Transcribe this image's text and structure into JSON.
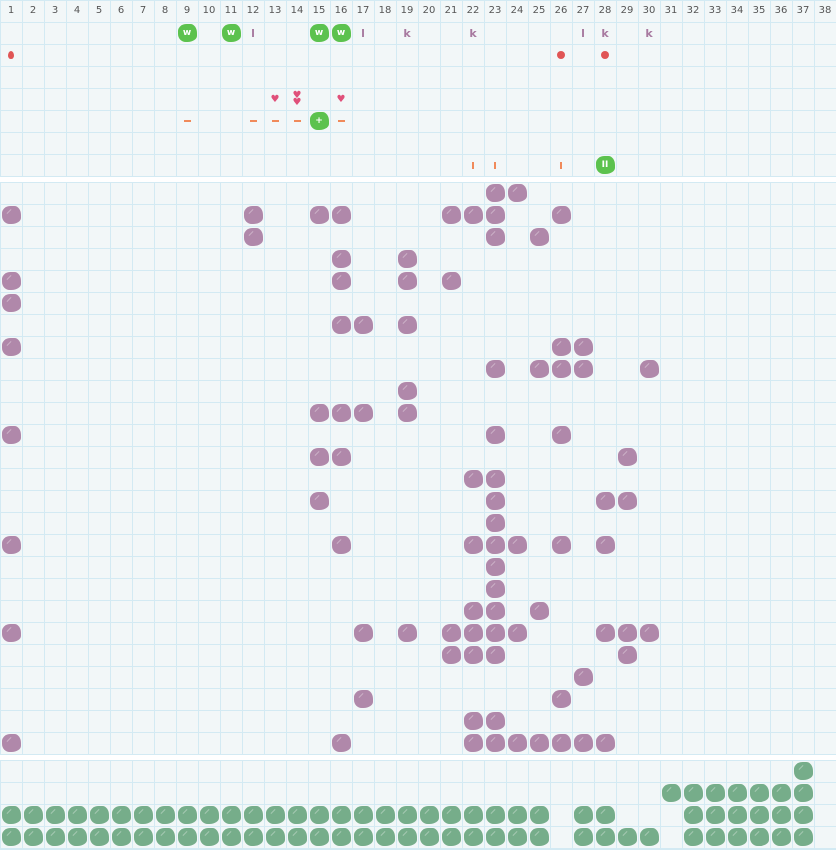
{
  "columns": [
    "1",
    "2",
    "3",
    "4",
    "5",
    "6",
    "7",
    "8",
    "9",
    "10",
    "11",
    "12",
    "13",
    "14",
    "15",
    "16",
    "17",
    "18",
    "19",
    "20",
    "21",
    "22",
    "23",
    "24",
    "25",
    "26",
    "27",
    "28",
    "29",
    "30",
    "31",
    "32",
    "33",
    "34",
    "35",
    "36",
    "37",
    "38"
  ],
  "colors": {
    "purple_block": "#b088aa",
    "green_block": "#5cc24e",
    "dark_green_block": "#76ad8a",
    "red": "#e05555",
    "heart": "#e0507a",
    "orange": "#f08a5a",
    "grid": "#d3eaf3"
  },
  "top_items": [
    {
      "row": 0,
      "col": 9,
      "type": "green",
      "label": "w"
    },
    {
      "row": 0,
      "col": 11,
      "type": "green",
      "label": "w"
    },
    {
      "row": 0,
      "col": 12,
      "type": "letter",
      "label": "l"
    },
    {
      "row": 0,
      "col": 15,
      "type": "green",
      "label": "w"
    },
    {
      "row": 0,
      "col": 16,
      "type": "green",
      "label": "w"
    },
    {
      "row": 0,
      "col": 17,
      "type": "letter",
      "label": "l"
    },
    {
      "row": 0,
      "col": 19,
      "type": "letter",
      "label": "k"
    },
    {
      "row": 0,
      "col": 22,
      "type": "letter",
      "label": "k"
    },
    {
      "row": 0,
      "col": 27,
      "type": "letter",
      "label": "l"
    },
    {
      "row": 0,
      "col": 28,
      "type": "letter",
      "label": "k"
    },
    {
      "row": 0,
      "col": 30,
      "type": "letter",
      "label": "k"
    },
    {
      "row": 1,
      "col": 1,
      "type": "drop"
    },
    {
      "row": 1,
      "col": 26,
      "type": "dot"
    },
    {
      "row": 1,
      "col": 28,
      "type": "dot"
    },
    {
      "row": 3,
      "col": 13,
      "type": "heart",
      "label": "♥"
    },
    {
      "row": 3,
      "col": 14,
      "type": "heart",
      "label": "♥♥"
    },
    {
      "row": 3,
      "col": 16,
      "type": "heart",
      "label": "♥"
    },
    {
      "row": 4,
      "col": 9,
      "type": "dash"
    },
    {
      "row": 4,
      "col": 12,
      "type": "dash"
    },
    {
      "row": 4,
      "col": 13,
      "type": "dash"
    },
    {
      "row": 4,
      "col": 14,
      "type": "dash"
    },
    {
      "row": 4,
      "col": 15,
      "type": "green",
      "label": "+"
    },
    {
      "row": 4,
      "col": 16,
      "type": "dash"
    },
    {
      "row": 6,
      "col": 22,
      "type": "bar"
    },
    {
      "row": 6,
      "col": 23,
      "type": "bar"
    },
    {
      "row": 6,
      "col": 26,
      "type": "bar"
    },
    {
      "row": 6,
      "col": 28,
      "type": "green",
      "label": "II"
    }
  ],
  "middle_rows": [
    [
      23,
      24
    ],
    [
      1,
      12,
      15,
      16,
      21,
      22,
      23,
      26
    ],
    [
      12,
      23,
      25
    ],
    [
      16,
      19
    ],
    [
      1,
      16,
      19,
      21
    ],
    [
      1
    ],
    [
      16,
      17,
      19
    ],
    [
      1,
      26,
      27
    ],
    [
      23,
      25,
      26,
      27,
      30
    ],
    [
      19
    ],
    [
      15,
      16,
      17,
      19
    ],
    [
      1,
      23,
      26
    ],
    [
      15,
      16,
      29
    ],
    [
      22,
      23
    ],
    [
      15,
      23,
      28,
      29
    ],
    [
      23
    ],
    [
      1,
      16,
      22,
      23,
      24,
      26,
      28
    ],
    [
      23
    ],
    [
      23
    ],
    [
      22,
      23,
      25
    ],
    [
      1,
      17,
      19,
      21,
      22,
      23,
      24,
      28,
      29,
      30
    ],
    [
      21,
      22,
      23,
      29
    ],
    [
      27
    ],
    [
      17,
      26
    ],
    [
      22,
      23
    ],
    [
      1,
      16,
      22,
      23,
      24,
      25,
      26,
      27,
      28
    ]
  ],
  "bottom_rows": [
    [
      37
    ],
    [
      31,
      32,
      33,
      34,
      35,
      36,
      37
    ],
    [
      1,
      2,
      3,
      4,
      5,
      6,
      7,
      8,
      9,
      10,
      11,
      12,
      13,
      14,
      15,
      16,
      17,
      18,
      19,
      20,
      21,
      22,
      23,
      24,
      25,
      27,
      28,
      32,
      33,
      34,
      35,
      36,
      37
    ],
    [
      1,
      2,
      3,
      4,
      5,
      6,
      7,
      8,
      9,
      10,
      11,
      12,
      13,
      14,
      15,
      16,
      17,
      18,
      19,
      20,
      21,
      22,
      23,
      24,
      25,
      27,
      28,
      29,
      30,
      32,
      33,
      34,
      35,
      36,
      37
    ]
  ]
}
